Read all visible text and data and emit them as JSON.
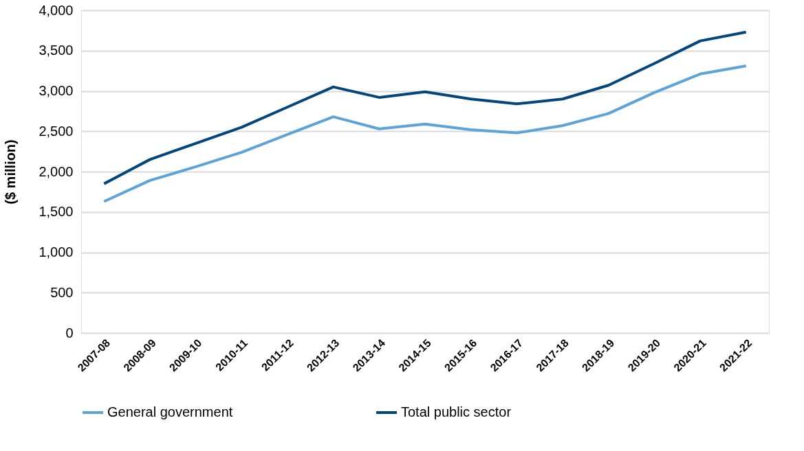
{
  "chart_data": {
    "type": "line",
    "ylabel": "($ million)",
    "categories": [
      "2007-08",
      "2008-09",
      "2009-10",
      "2010-11",
      "2011-12",
      "2012-13",
      "2013-14",
      "2014-15",
      "2015-16",
      "2016-17",
      "2017-18",
      "2018-19",
      "2019-20",
      "2020-21",
      "2021-22"
    ],
    "series": [
      {
        "name": "General government",
        "color": "#5ba3d9",
        "values": [
          1630,
          1890,
          2060,
          2240,
          2460,
          2680,
          2530,
          2590,
          2520,
          2480,
          2570,
          2720,
          2980,
          3210,
          3310
        ]
      },
      {
        "name": "Total public sector",
        "color": "#02467e",
        "values": [
          1850,
          2150,
          2350,
          2550,
          2800,
          3050,
          2920,
          2990,
          2900,
          2840,
          2900,
          3070,
          3340,
          3620,
          3730
        ]
      }
    ],
    "ylim": [
      0,
      4000
    ],
    "yticks": [
      {
        "value": 0,
        "label": "0"
      },
      {
        "value": 500,
        "label": "500"
      },
      {
        "value": 1000,
        "label": "1,000"
      },
      {
        "value": 1500,
        "label": "1,500"
      },
      {
        "value": 2000,
        "label": "2,000"
      },
      {
        "value": 2500,
        "label": "2,500"
      },
      {
        "value": 3000,
        "label": "3,000"
      },
      {
        "value": 3500,
        "label": "3,500"
      },
      {
        "value": 4000,
        "label": "4,000"
      }
    ],
    "grid": "y",
    "legend": "bottom",
    "marker": "none",
    "line_style": "solid"
  }
}
